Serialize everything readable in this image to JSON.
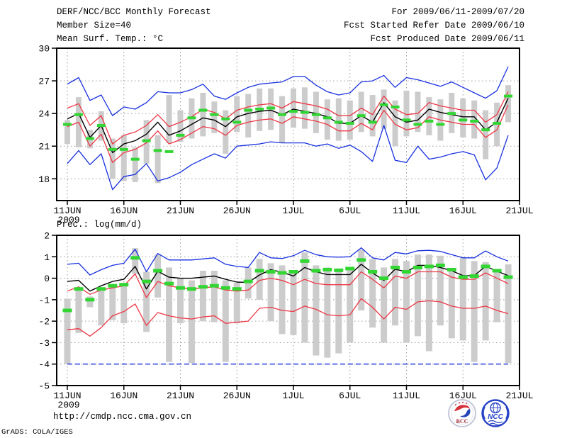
{
  "header": {
    "title": "DERF/NCC/BCC Monthly Forecast",
    "member_size": "Member Size=40",
    "temp_label": "Mean Surf. Temp.: °C",
    "for_range": "For 2009/06/11-2009/07/20",
    "fcst_started": "Fcst Started Refer Date 2009/06/10",
    "fcst_produced": "Fcst Produced Date 2009/06/11"
  },
  "footer": {
    "url": "http://cmdp.ncc.cma.gov.cn",
    "grads_credit": "GrADS: COLA/IGES",
    "logos": [
      {
        "name": "bcc-logo",
        "label": "BCC"
      },
      {
        "name": "ncc-logo",
        "label": "NCC"
      }
    ]
  },
  "colors": {
    "blue": "#1830e0",
    "red": "#ee3746",
    "black": "#000000",
    "green": "#32d632",
    "gray_bar": "#cccccc",
    "grid": "#9a9a9a",
    "border": "#000000"
  },
  "chart_data": [
    {
      "type": "line",
      "title": "Mean Surf. Temp.: °C",
      "x_tick_labels": [
        "11JUN",
        "16JUN",
        "21JUN",
        "26JUN",
        "1JUL",
        "6JUL",
        "11JUL",
        "16JUL",
        "21JUL"
      ],
      "xtick_days": [
        0,
        5,
        10,
        15,
        20,
        25,
        30,
        35,
        40
      ],
      "x_year_label": "2009",
      "ylim": [
        16,
        30
      ],
      "yticks": [
        18,
        21,
        24,
        27,
        30
      ],
      "grid": "dotted",
      "series": [
        {
          "name": "forecast maximum",
          "color": "blue",
          "style": "line",
          "values": [
            26.7,
            27.3,
            25.2,
            25.7,
            23.8,
            24.6,
            24.4,
            25.0,
            26.0,
            25.9,
            25.9,
            26.2,
            26.7,
            25.6,
            25.3,
            25.9,
            26.4,
            26.7,
            26.8,
            26.9,
            27.4,
            27.4,
            26.6,
            26.0,
            25.7,
            25.9,
            26.9,
            27.0,
            27.5,
            26.4,
            27.3,
            27.1,
            26.8,
            26.5,
            26.9,
            26.4,
            25.9,
            25.4,
            26.1,
            28.3
          ]
        },
        {
          "name": "forecast upper quartile",
          "color": "red",
          "style": "line",
          "values": [
            24.5,
            24.9,
            22.9,
            23.8,
            21.2,
            22.0,
            22.3,
            22.9,
            23.9,
            22.8,
            23.2,
            23.7,
            24.4,
            24.1,
            23.5,
            24.3,
            24.6,
            24.8,
            24.9,
            24.5,
            25.1,
            24.9,
            24.7,
            24.4,
            23.8,
            23.8,
            24.5,
            23.9,
            25.6,
            24.4,
            23.9,
            24.0,
            25.0,
            24.7,
            24.5,
            24.3,
            24.3,
            23.2,
            23.9,
            26.0
          ]
        },
        {
          "name": "ensemble mean",
          "color": "black",
          "style": "line",
          "values": [
            23.5,
            24.0,
            21.8,
            22.9,
            20.4,
            21.2,
            21.5,
            22.1,
            23.2,
            22.0,
            22.4,
            23.0,
            23.6,
            23.4,
            22.8,
            23.7,
            24.0,
            24.2,
            24.3,
            23.9,
            24.4,
            24.2,
            24.0,
            23.7,
            23.1,
            23.1,
            23.8,
            23.2,
            25.0,
            23.7,
            23.2,
            23.4,
            24.4,
            24.1,
            23.9,
            23.7,
            23.7,
            22.5,
            23.2,
            25.4
          ]
        },
        {
          "name": "forecast lower quartile",
          "color": "red",
          "style": "line",
          "values": [
            22.8,
            23.2,
            21.0,
            22.1,
            19.5,
            20.4,
            20.7,
            21.3,
            22.4,
            21.2,
            21.6,
            22.2,
            22.8,
            22.6,
            22.0,
            22.9,
            23.2,
            23.4,
            23.5,
            23.1,
            23.7,
            23.5,
            23.3,
            23.0,
            22.4,
            22.4,
            23.1,
            22.5,
            24.3,
            23.0,
            22.5,
            22.7,
            23.7,
            23.4,
            23.2,
            23.0,
            23.0,
            21.8,
            22.5,
            24.8
          ]
        },
        {
          "name": "forecast minimum",
          "color": "blue",
          "style": "line",
          "values": [
            19.4,
            20.6,
            19.3,
            20.3,
            17.0,
            18.2,
            18.4,
            19.4,
            17.8,
            18.1,
            18.6,
            19.3,
            19.8,
            20.3,
            19.9,
            21.0,
            21.1,
            21.2,
            21.4,
            21.3,
            21.3,
            21.3,
            21.0,
            21.2,
            20.8,
            21.1,
            20.5,
            19.6,
            22.9,
            19.7,
            19.5,
            21.0,
            19.8,
            20.0,
            20.3,
            20.5,
            20.2,
            17.9,
            19.0,
            22.0
          ]
        },
        {
          "name": "observation (green dashes)",
          "color": "green",
          "style": "marks",
          "values": [
            23.0,
            23.9,
            21.7,
            22.9,
            20.7,
            20.7,
            19.8,
            21.5,
            20.6,
            20.5,
            22.0,
            23.6,
            24.3,
            23.9,
            23.5,
            23.2,
            24.3,
            24.4,
            24.5,
            23.9,
            24.2,
            24.1,
            23.9,
            23.6,
            23.2,
            23.1,
            23.8,
            23.2,
            24.8,
            24.6,
            23.4,
            23.0,
            23.3,
            23.0,
            24.0,
            23.4,
            23.3,
            22.5,
            23.1,
            25.6
          ]
        }
      ],
      "bars_name": "member spread (gray bars)",
      "bars": [
        [
          21.2,
          23.4
        ],
        [
          20.9,
          25.5
        ],
        [
          20.8,
          22.5
        ],
        [
          21.5,
          24.2
        ],
        [
          18.0,
          21.7
        ],
        [
          17.8,
          22.0
        ],
        [
          17.7,
          20.9
        ],
        [
          19.4,
          23.4
        ],
        [
          17.6,
          22.0
        ],
        [
          21.3,
          25.7
        ],
        [
          21.4,
          24.3
        ],
        [
          21.7,
          25.4
        ],
        [
          21.9,
          25.9
        ],
        [
          22.2,
          25.1
        ],
        [
          20.3,
          24.3
        ],
        [
          22.3,
          25.6
        ],
        [
          21.8,
          25.8
        ],
        [
          22.4,
          26.3
        ],
        [
          22.5,
          26.3
        ],
        [
          21.3,
          25.6
        ],
        [
          22.7,
          26.3
        ],
        [
          22.6,
          26.4
        ],
        [
          22.2,
          26.0
        ],
        [
          21.6,
          25.3
        ],
        [
          21.5,
          25.4
        ],
        [
          21.6,
          25.2
        ],
        [
          22.3,
          26.0
        ],
        [
          21.9,
          25.7
        ],
        [
          22.6,
          26.2
        ],
        [
          21.0,
          25.2
        ],
        [
          21.9,
          26.1
        ],
        [
          22.3,
          26.0
        ],
        [
          22.0,
          25.5
        ],
        [
          21.5,
          25.3
        ],
        [
          22.2,
          25.9
        ],
        [
          21.8,
          25.4
        ],
        [
          21.7,
          25.2
        ],
        [
          19.8,
          24.3
        ],
        [
          21.0,
          25.0
        ],
        [
          23.2,
          26.6
        ]
      ]
    },
    {
      "type": "line",
      "title": "Prec.: log(mm/d)",
      "x_tick_labels": [
        "11JUN",
        "16JUN",
        "21JUN",
        "26JUN",
        "1JUL",
        "6JUL",
        "11JUL",
        "16JUL",
        "21JUL"
      ],
      "xtick_days": [
        0,
        5,
        10,
        15,
        20,
        25,
        30,
        35,
        40
      ],
      "x_year_label": "2009",
      "ylim": [
        -5,
        2
      ],
      "yticks": [
        -5,
        -4,
        -3,
        -2,
        -1,
        0,
        1,
        2
      ],
      "grid": "dotted",
      "series": [
        {
          "name": "forecast maximum",
          "color": "blue",
          "style": "line",
          "values": [
            0.65,
            0.7,
            0.15,
            0.4,
            0.6,
            0.7,
            1.35,
            0.3,
            1.15,
            0.85,
            0.85,
            0.85,
            0.9,
            0.95,
            0.65,
            0.55,
            0.5,
            1.2,
            0.95,
            0.92,
            1.05,
            1.3,
            1.1,
            1.0,
            0.98,
            1.0,
            1.42,
            0.95,
            0.85,
            1.2,
            1.13,
            1.28,
            1.3,
            1.25,
            1.1,
            0.95,
            0.95,
            1.27,
            1.0,
            0.8
          ]
        },
        {
          "name": "forecast upper quartile",
          "color": "red",
          "style": "line",
          "values": [
            -0.6,
            -0.4,
            -0.75,
            -0.55,
            -0.45,
            -0.35,
            0.2,
            -0.9,
            -0.15,
            -0.35,
            -0.45,
            -0.5,
            -0.45,
            -0.4,
            -0.55,
            -0.6,
            -0.55,
            -0.1,
            0.0,
            -0.1,
            -0.3,
            -0.05,
            -0.25,
            -0.3,
            -0.3,
            -0.3,
            0.3,
            -0.05,
            -0.45,
            0.1,
            0.0,
            0.3,
            0.3,
            0.3,
            0.05,
            -0.05,
            -0.05,
            0.25,
            0.0,
            -0.25
          ]
        },
        {
          "name": "ensemble mean",
          "color": "black",
          "style": "line",
          "values": [
            -0.15,
            -0.1,
            -0.6,
            -0.35,
            -0.15,
            -0.05,
            0.55,
            -0.5,
            0.32,
            0.05,
            0.0,
            0.0,
            0.05,
            0.1,
            -0.05,
            -0.18,
            -0.2,
            0.15,
            0.4,
            0.28,
            0.1,
            0.5,
            0.3,
            0.17,
            0.17,
            0.17,
            0.65,
            0.25,
            -0.1,
            0.42,
            0.3,
            0.6,
            0.6,
            0.5,
            0.35,
            0.12,
            0.12,
            0.56,
            0.33,
            0.12
          ]
        },
        {
          "name": "forecast lower quartile",
          "color": "red",
          "style": "line",
          "values": [
            -2.4,
            -2.35,
            -2.7,
            -2.3,
            -1.75,
            -1.55,
            -1.2,
            -2.2,
            -1.6,
            -1.75,
            -1.85,
            -1.9,
            -1.8,
            -1.75,
            -2.1,
            -2.05,
            -2.0,
            -1.4,
            -1.35,
            -1.5,
            -1.55,
            -1.3,
            -1.45,
            -1.7,
            -1.75,
            -1.7,
            -0.95,
            -1.35,
            -1.9,
            -1.35,
            -1.45,
            -1.1,
            -1.05,
            -1.1,
            -1.3,
            -1.4,
            -1.4,
            -1.3,
            -1.5,
            -1.65
          ]
        },
        {
          "name": "forecast minimum",
          "color": "blue",
          "style": "line",
          "dash": "7 4",
          "values": [
            -4.0,
            -4.0,
            -4.0,
            -4.0,
            -4.0,
            -4.0,
            -4.0,
            -4.0,
            -4.0,
            -4.0,
            -4.0,
            -4.0,
            -4.0,
            -4.0,
            -4.0,
            -4.0,
            -4.0,
            -4.0,
            -4.0,
            -4.0,
            -4.0,
            -4.0,
            -4.0,
            -4.0,
            -4.0,
            -4.0,
            -4.0,
            -4.0,
            -4.0,
            -4.0,
            -4.0,
            -4.0,
            -4.0,
            -4.0,
            -4.0,
            -4.0,
            -4.0,
            -4.0,
            -4.0,
            -4.0
          ]
        },
        {
          "name": "observation (green dashes)",
          "color": "green",
          "style": "marks",
          "values": [
            -1.5,
            -0.5,
            -1.0,
            -0.5,
            -0.35,
            -0.3,
            0.95,
            -0.15,
            0.35,
            -0.25,
            -0.45,
            -0.5,
            -0.4,
            -0.35,
            -0.45,
            -0.5,
            -0.15,
            0.35,
            0.3,
            0.25,
            0.3,
            0.8,
            0.35,
            0.4,
            0.37,
            0.45,
            0.85,
            0.3,
            0.0,
            0.5,
            0.3,
            0.5,
            0.55,
            0.6,
            0.4,
            0.05,
            0.1,
            0.55,
            0.35,
            0.05
          ]
        }
      ],
      "bars_name": "member spread (gray bars)",
      "bars": [
        [
          -4.0,
          -0.95
        ],
        [
          -2.55,
          -0.45
        ],
        [
          -1.35,
          -0.85
        ],
        [
          -2.2,
          -0.5
        ],
        [
          -1.95,
          -0.3
        ],
        [
          -2.1,
          -0.3
        ],
        [
          0.2,
          1.4
        ],
        [
          -2.5,
          0.3
        ],
        [
          -0.9,
          1.1
        ],
        [
          -3.9,
          0.5
        ],
        [
          -2.1,
          0.0
        ],
        [
          -3.95,
          -0.1
        ],
        [
          -2.0,
          0.35
        ],
        [
          -2.05,
          0.35
        ],
        [
          -3.9,
          -0.1
        ],
        [
          -2.1,
          -0.2
        ],
        [
          -0.95,
          0.5
        ],
        [
          -1.0,
          0.9
        ],
        [
          -2.0,
          0.7
        ],
        [
          -2.6,
          0.6
        ],
        [
          -2.65,
          0.3
        ],
        [
          -3.0,
          1.2
        ],
        [
          -3.6,
          0.6
        ],
        [
          -3.7,
          0.5
        ],
        [
          -3.5,
          0.45
        ],
        [
          -3.0,
          0.5
        ],
        [
          -1.5,
          1.35
        ],
        [
          -2.3,
          0.9
        ],
        [
          -3.0,
          0.5
        ],
        [
          -2.2,
          0.9
        ],
        [
          -3.0,
          0.8
        ],
        [
          -2.7,
          1.1
        ],
        [
          -3.4,
          1.1
        ],
        [
          -2.2,
          1.05
        ],
        [
          -2.8,
          0.45
        ],
        [
          -2.9,
          0.95
        ],
        [
          -3.9,
          0.8
        ],
        [
          -2.9,
          0.75
        ],
        [
          -2.05,
          0.35
        ],
        [
          -3.95,
          0.65
        ]
      ]
    }
  ]
}
